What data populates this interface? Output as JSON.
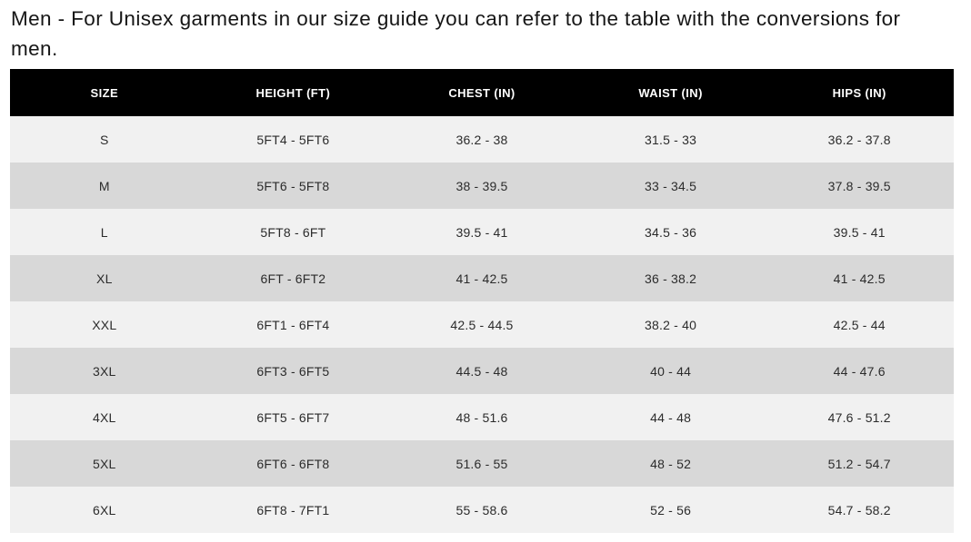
{
  "page": {
    "heading": "Men - For Unisex garments in our size guide you can refer to the table with the conversions for men."
  },
  "table": {
    "columns": [
      "SIZE",
      "HEIGHT (FT)",
      "CHEST (IN)",
      "WAIST (IN)",
      "HIPS (IN)"
    ],
    "rows": [
      [
        "S",
        "5FT4 - 5FT6",
        "36.2 - 38",
        "31.5 - 33",
        "36.2 - 37.8"
      ],
      [
        "M",
        "5FT6 - 5FT8",
        "38 - 39.5",
        "33 - 34.5",
        "37.8 - 39.5"
      ],
      [
        "L",
        "5FT8 - 6FT",
        "39.5 - 41",
        "34.5 - 36",
        "39.5 - 41"
      ],
      [
        "XL",
        "6FT - 6FT2",
        "41 - 42.5",
        "36 - 38.2",
        "41 - 42.5"
      ],
      [
        "XXL",
        "6FT1 - 6FT4",
        "42.5 - 44.5",
        "38.2 - 40",
        "42.5 - 44"
      ],
      [
        "3XL",
        "6FT3 - 6FT5",
        "44.5 - 48",
        "40 - 44",
        "44 - 47.6"
      ],
      [
        "4XL",
        "6FT5 - 6FT7",
        "48 - 51.6",
        "44 - 48",
        "47.6 - 51.2"
      ],
      [
        "5XL",
        "6FT6 - 6FT8",
        "51.6 - 55",
        "48 - 52",
        "51.2 - 54.7"
      ],
      [
        "6XL",
        "6FT8 - 7FT1",
        "55 - 58.6",
        "52 - 56",
        "54.7 - 58.2"
      ]
    ],
    "colors": {
      "header_bg": "#000000",
      "header_text": "#ffffff",
      "row_odd_bg": "#f1f1f1",
      "row_even_bg": "#d8d8d8",
      "cell_text": "#2b2b2b"
    }
  }
}
